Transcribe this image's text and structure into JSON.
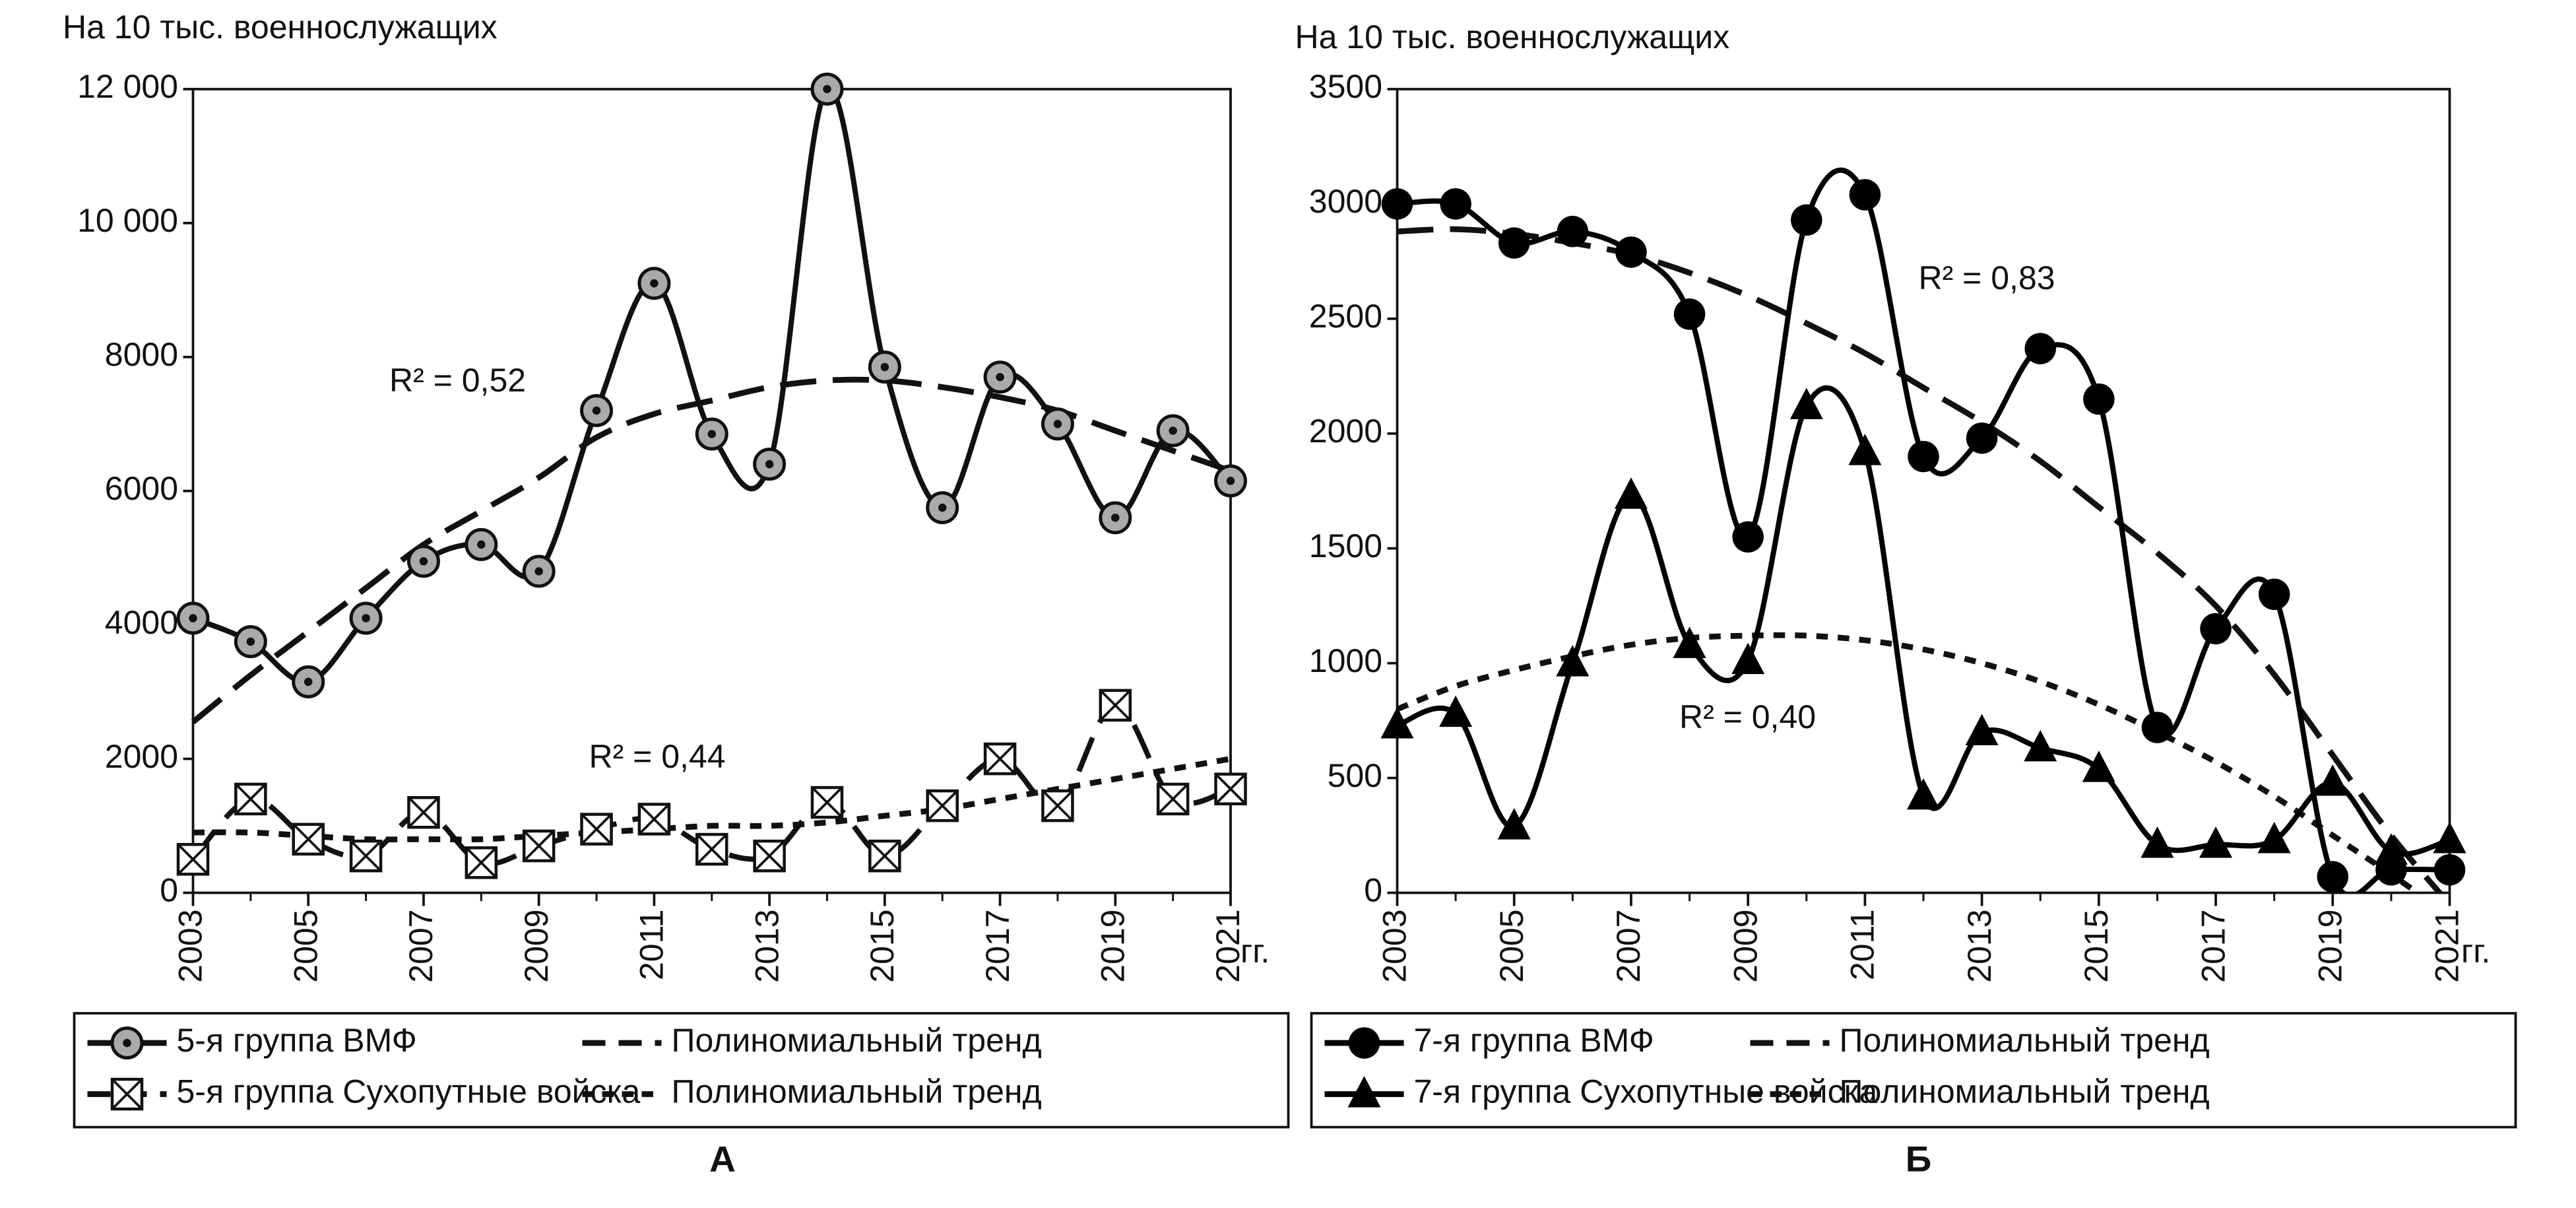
{
  "chart_data": [
    {
      "type": "line",
      "y_label": "На 10 тыс.  военнослужащих",
      "x_unit": "гг.",
      "panel": "А",
      "x": [
        2003,
        2004,
        2005,
        2006,
        2007,
        2008,
        2009,
        2010,
        2011,
        2012,
        2013,
        2014,
        2015,
        2016,
        2017,
        2018,
        2019,
        2020,
        2021
      ],
      "xlim": [
        2003,
        2021
      ],
      "xticks": [
        2003,
        2005,
        2007,
        2009,
        2011,
        2013,
        2015,
        2017,
        2019,
        2021
      ],
      "ylim": [
        0,
        12000
      ],
      "yticks": [
        0,
        2000,
        4000,
        6000,
        8000,
        {
          "value": 10000,
          "label": "10 000"
        },
        {
          "value": 12000,
          "label": "12 000"
        }
      ],
      "series": [
        {
          "name": "5-я группа ВМФ",
          "color": "#111111",
          "marker": "dotted-circle",
          "style": "solid",
          "values": [
            4100,
            3750,
            3150,
            4100,
            4950,
            5200,
            4800,
            7200,
            9100,
            6850,
            6400,
            12000,
            7850,
            5750,
            7700,
            7000,
            5600,
            6900,
            6150
          ]
        },
        {
          "name": "Полиномиальный тренд",
          "color": "#111111",
          "style": "long-dash",
          "values": [
            2550,
            3250,
            3900,
            4550,
            5200,
            5700,
            6200,
            6800,
            7150,
            7350,
            7550,
            7650,
            7650,
            7550,
            7400,
            7200,
            6900,
            6600,
            6300
          ]
        },
        {
          "name": "5-я группа Сухопутные войска",
          "color": "#111111",
          "marker": "crossed-square",
          "style": "long-dash",
          "values": [
            500,
            1400,
            800,
            550,
            1200,
            450,
            700,
            950,
            1100,
            650,
            550,
            1350,
            550,
            1300,
            2000,
            1300,
            2800,
            1400,
            1550
          ]
        },
        {
          "name": "Полиномиальный тренд",
          "color": "#111111",
          "style": "short-dash",
          "values": [
            900,
            900,
            850,
            800,
            800,
            800,
            850,
            900,
            950,
            1000,
            1000,
            1050,
            1150,
            1250,
            1400,
            1550,
            1700,
            1850,
            2000
          ]
        }
      ],
      "annotations": [
        "R² = 0,52",
        "R² = 0,44"
      ]
    },
    {
      "type": "line",
      "y_label": "На 10 тыс.  военнослужащих",
      "x_unit": "гг.",
      "panel": "Б",
      "x": [
        2003,
        2004,
        2005,
        2006,
        2007,
        2008,
        2009,
        2010,
        2011,
        2012,
        2013,
        2014,
        2015,
        2016,
        2017,
        2018,
        2019,
        2020,
        2021
      ],
      "xlim": [
        2003,
        2021
      ],
      "xticks": [
        2003,
        2005,
        2007,
        2009,
        2011,
        2013,
        2015,
        2017,
        2019,
        2021
      ],
      "ylim": [
        0,
        3500
      ],
      "yticks": [
        0,
        500,
        1000,
        1500,
        2000,
        2500,
        3000,
        3500
      ],
      "series": [
        {
          "name": "7-я группа ВМФ",
          "color": "#000000",
          "marker": "circle",
          "style": "solid",
          "values": [
            3000,
            3000,
            2830,
            2880,
            2790,
            2520,
            1550,
            2930,
            3040,
            1900,
            1980,
            2370,
            2150,
            720,
            1150,
            1300,
            70,
            100,
            100
          ]
        },
        {
          "name": "Полиномиальный тренд",
          "color": "#111111",
          "style": "long-dash",
          "values": [
            2880,
            2890,
            2870,
            2830,
            2780,
            2700,
            2600,
            2480,
            2350,
            2200,
            2050,
            1880,
            1680,
            1480,
            1250,
            950,
            600,
            250,
            -50
          ]
        },
        {
          "name": "7-я группа Сухопутные войска",
          "color": "#000000",
          "marker": "triangle",
          "style": "solid",
          "values": [
            730,
            780,
            290,
            1000,
            1730,
            1080,
            1010,
            2120,
            1920,
            420,
            700,
            630,
            540,
            210,
            210,
            230,
            480,
            180,
            230
          ]
        },
        {
          "name": "Полиномиальный тренд",
          "color": "#111111",
          "style": "short-dash",
          "values": [
            800,
            900,
            970,
            1030,
            1080,
            1110,
            1120,
            1120,
            1100,
            1060,
            1000,
            920,
            820,
            700,
            570,
            420,
            250,
            80,
            -100
          ]
        }
      ],
      "annotations": [
        "R² = 0,83",
        "R² = 0,40"
      ]
    }
  ]
}
